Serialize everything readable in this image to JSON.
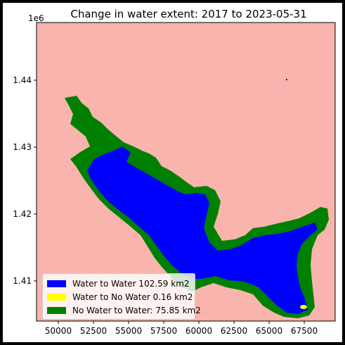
{
  "title": "Change in water extent: 2017 to 2023-05-31",
  "y_offset_label": "1e6",
  "colors": {
    "background": "#f8b4ad",
    "water_to_water": "#0000ff",
    "water_to_no_water": "#ffff00",
    "no_water_to_water": "#008000"
  },
  "x_ticks": [
    "50000",
    "52500",
    "55000",
    "57500",
    "60000",
    "62500",
    "65000",
    "67500"
  ],
  "y_ticks": [
    "1.44",
    "1.43",
    "1.42",
    "1.41"
  ],
  "legend": [
    {
      "label": "Water to Water 102.59 km2",
      "color": "#0000ff"
    },
    {
      "label": "Water to No Water 0.16 km2",
      "color": "#ffff00"
    },
    {
      "label": "No Water to Water: 75.85 km2",
      "color": "#008000"
    }
  ]
}
